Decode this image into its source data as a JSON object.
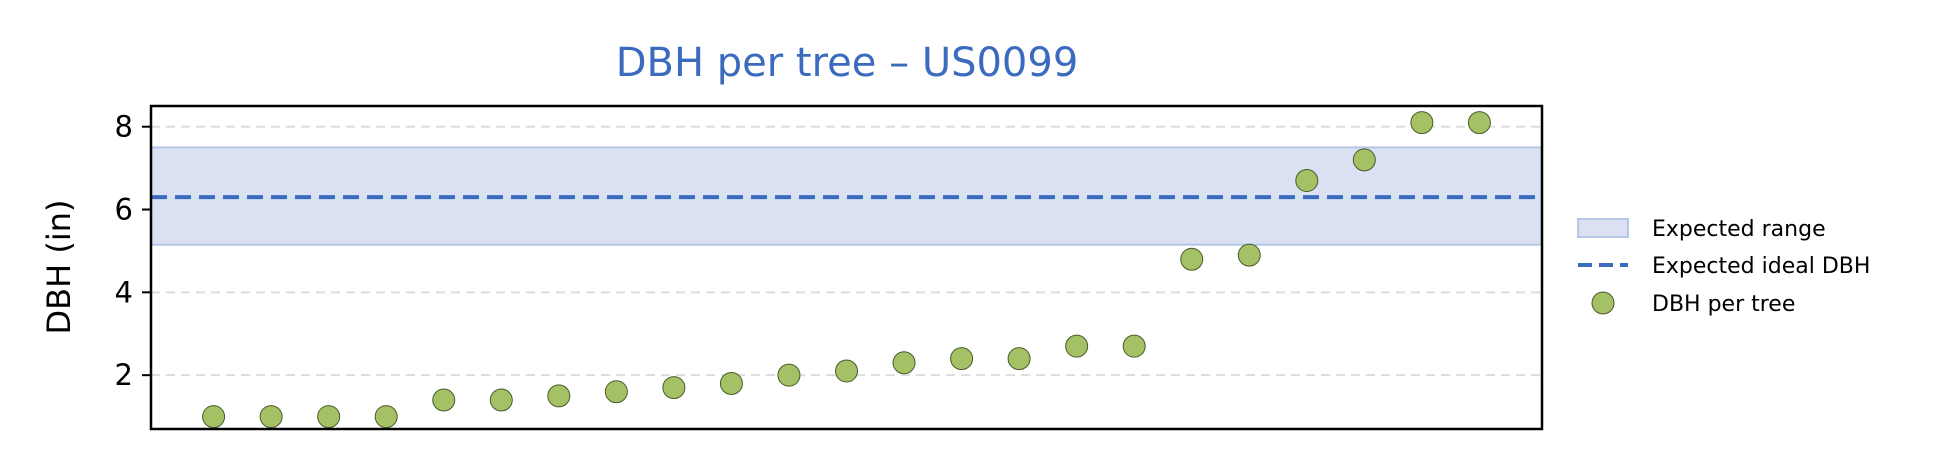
{
  "chart_data": {
    "type": "scatter",
    "title": "DBH per tree – US0099",
    "xlabel": "",
    "ylabel": "DBH (in)",
    "ylim": [
      0.7,
      8.5
    ],
    "yticks": [
      2,
      4,
      6,
      8
    ],
    "grid": "horizontal dashed",
    "legend_position": "right",
    "expected_range": {
      "low": 5.15,
      "high": 7.5,
      "label": "Expected range"
    },
    "expected_ideal": {
      "value": 6.3,
      "label": "Expected ideal DBH"
    },
    "series": [
      {
        "name": "DBH per tree",
        "values": [
          1.0,
          1.0,
          1.0,
          1.0,
          1.4,
          1.4,
          1.5,
          1.6,
          1.7,
          1.8,
          2.0,
          2.1,
          2.3,
          2.4,
          2.4,
          2.7,
          2.7,
          4.8,
          4.9,
          6.7,
          7.2,
          8.1,
          8.1
        ]
      }
    ],
    "colors": {
      "points": "#a5c166",
      "point_edge": "#4a5a2a",
      "range_fill": "#d9e1f2",
      "range_edge": "#b4c7e7",
      "ideal_line": "#3a6bbf",
      "title": "#3a6bbf",
      "grid": "#dddddd"
    }
  }
}
